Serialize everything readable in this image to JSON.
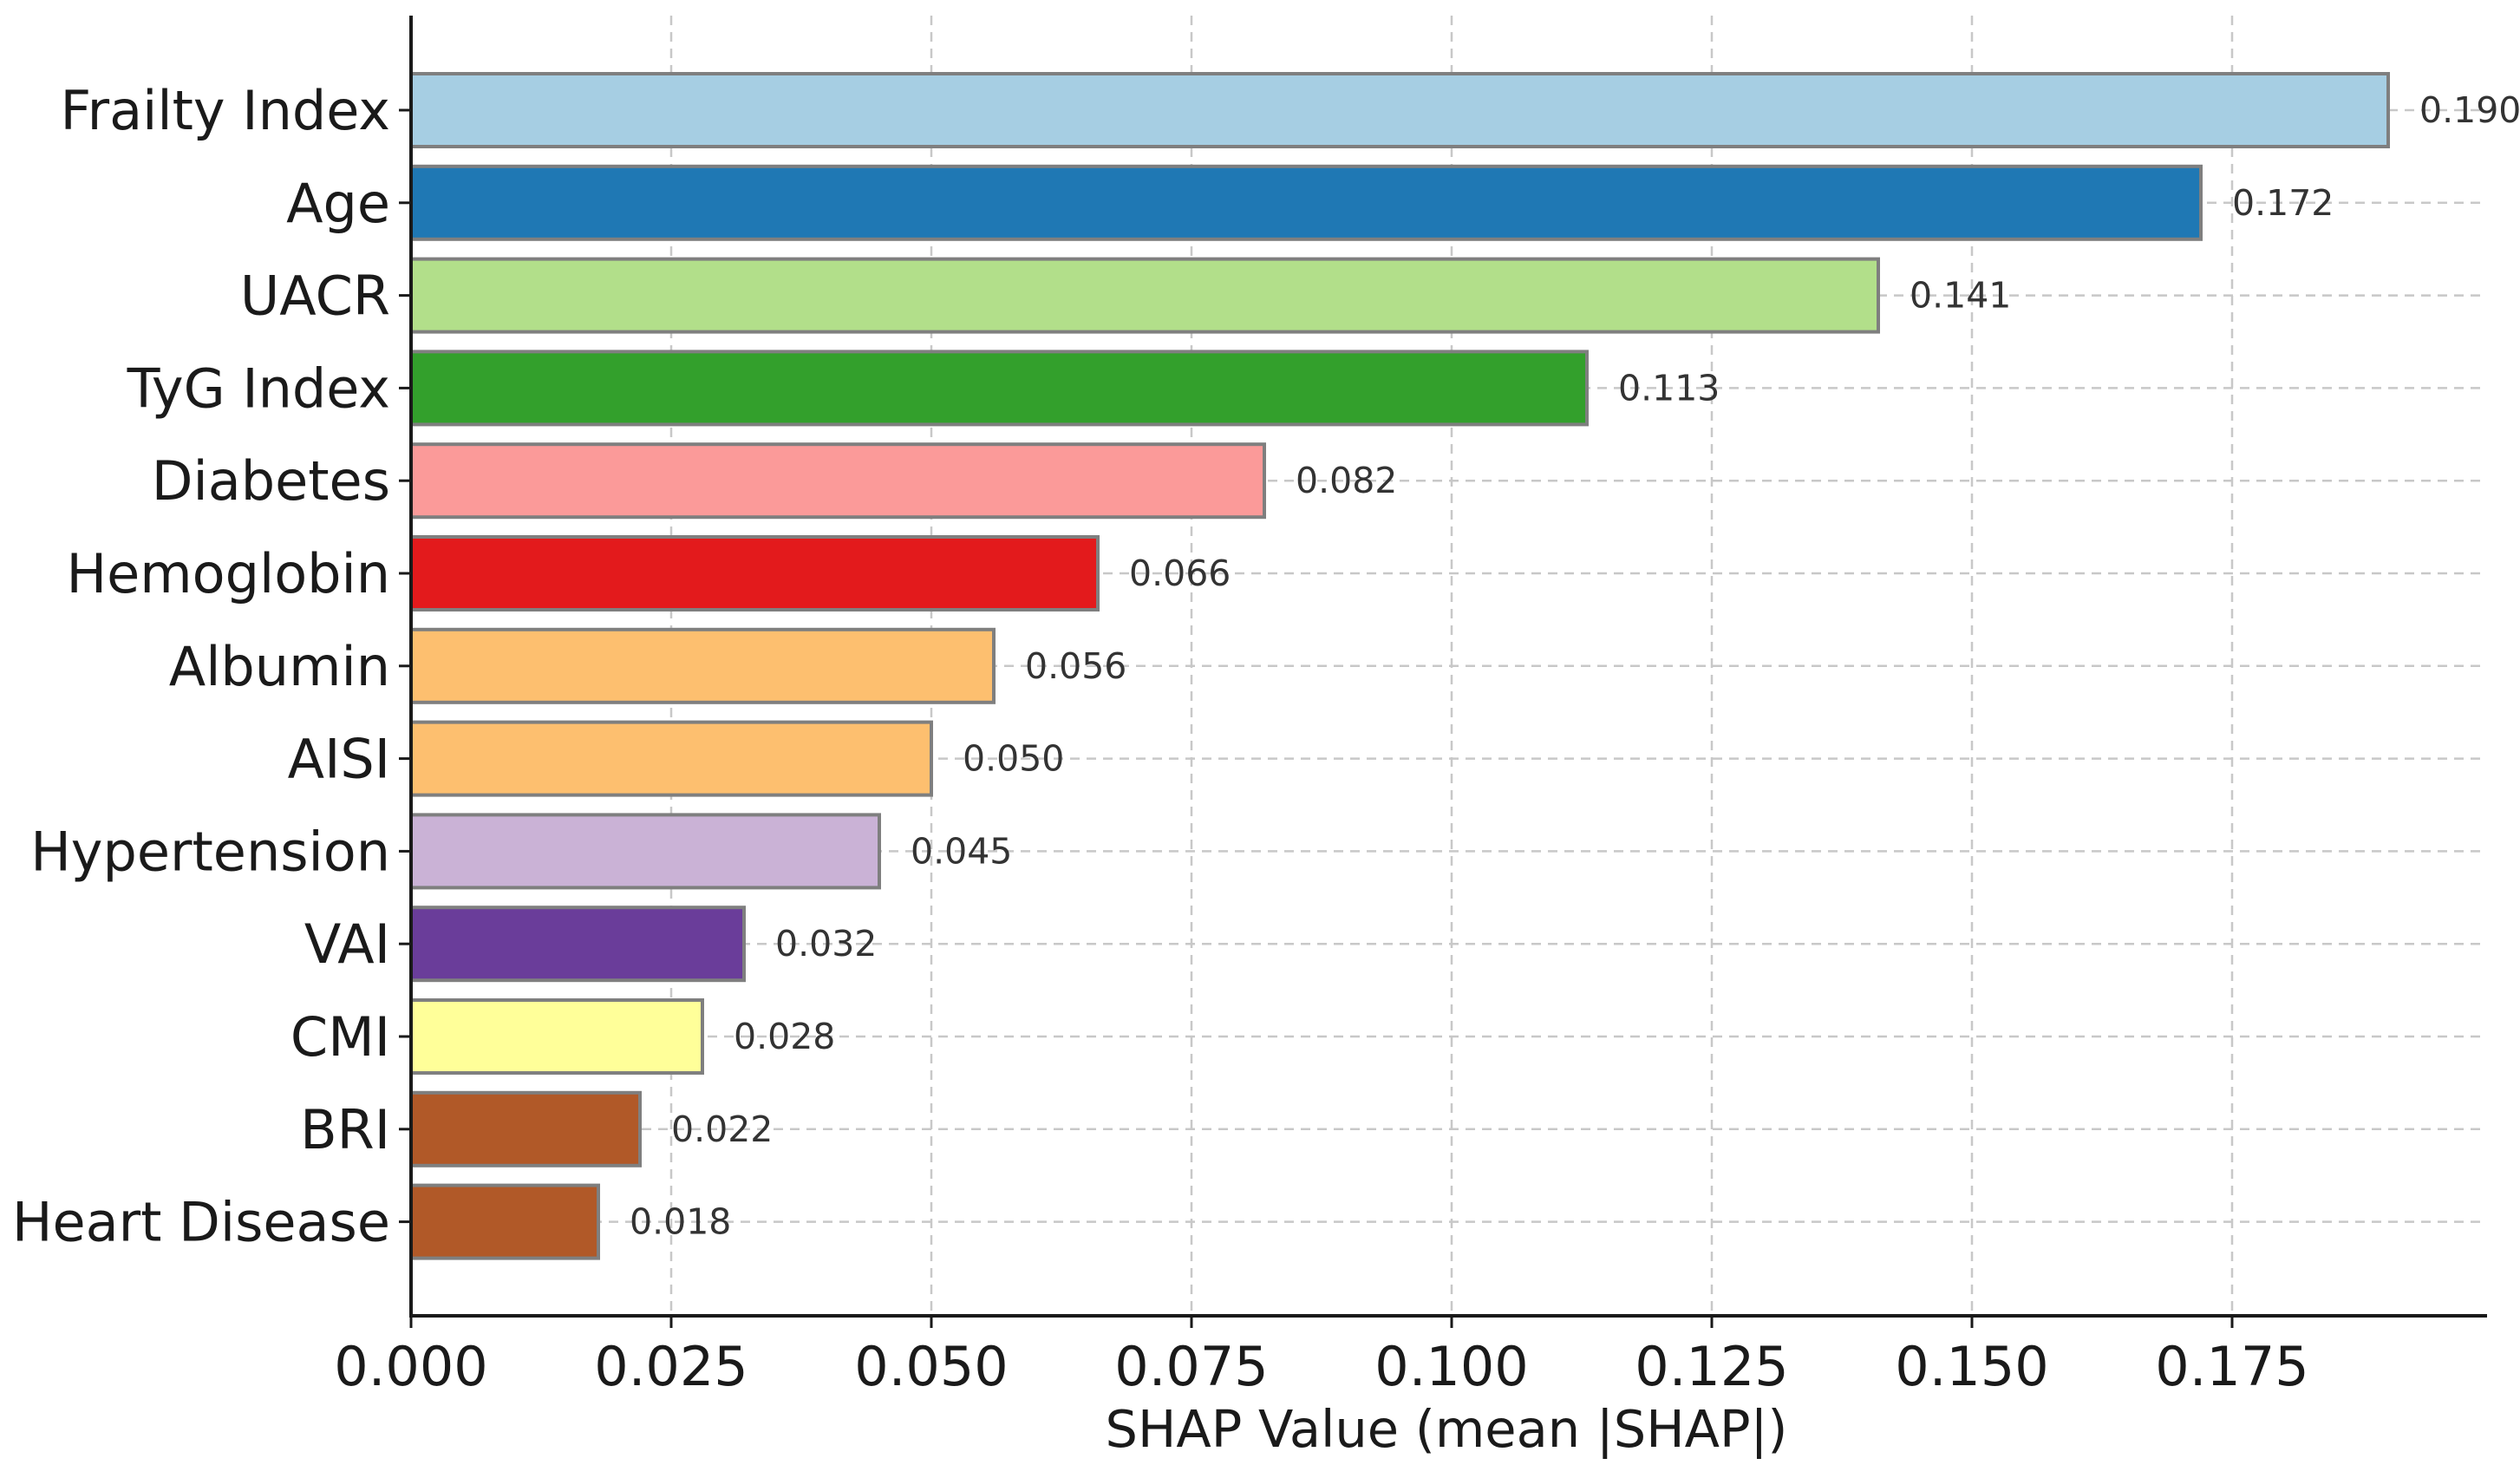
{
  "chart_data": {
    "type": "bar",
    "orientation": "horizontal",
    "title": "",
    "xlabel": "SHAP Value (mean |SHAP|)",
    "ylabel": "",
    "xlim": [
      0,
      0.2
    ],
    "xticks": [
      0.0,
      0.025,
      0.05,
      0.075,
      0.1,
      0.125,
      0.15,
      0.175
    ],
    "xtick_labels": [
      "0.000",
      "0.025",
      "0.050",
      "0.075",
      "0.100",
      "0.125",
      "0.150",
      "0.175"
    ],
    "grid": true,
    "categories": [
      "Frailty Index",
      "Age",
      "UACR",
      "TyG Index",
      "Diabetes",
      "Hemoglobin",
      "Albumin",
      "AISI",
      "Hypertension",
      "VAI",
      "CMI",
      "BRI",
      "Heart Disease"
    ],
    "values": [
      0.19,
      0.172,
      0.141,
      0.113,
      0.082,
      0.066,
      0.056,
      0.05,
      0.045,
      0.032,
      0.028,
      0.022,
      0.018
    ],
    "value_labels": [
      "0.190",
      "0.172",
      "0.141",
      "0.113",
      "0.082",
      "0.066",
      "0.056",
      "0.050",
      "0.045",
      "0.032",
      "0.028",
      "0.022",
      "0.018"
    ],
    "colors": [
      "#a6cee3",
      "#1f78b4",
      "#b2df8a",
      "#33a02c",
      "#fb9a99",
      "#e31a1c",
      "#fdbf6f",
      "#fdbf6f",
      "#cab2d6",
      "#6a3d9a",
      "#ffff99",
      "#b15928",
      "#b15928"
    ]
  }
}
